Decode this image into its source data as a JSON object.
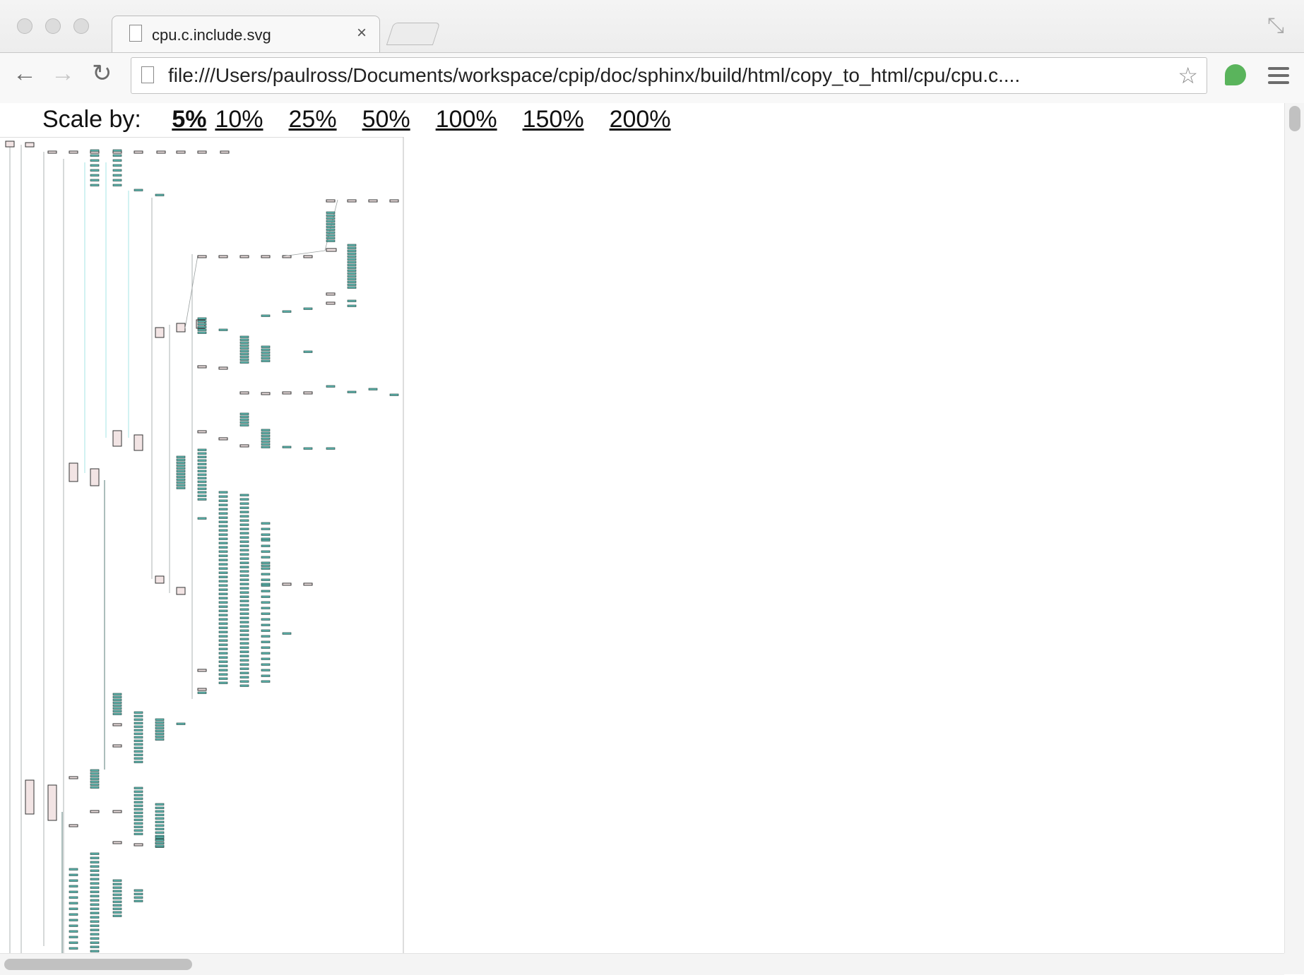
{
  "window": {
    "traffic_lights": [
      "close",
      "minimize",
      "zoom"
    ]
  },
  "tab": {
    "title": "cpu.c.include.svg",
    "close_glyph": "×",
    "doc_icon": "document-icon"
  },
  "toolbar": {
    "back_glyph": "←",
    "forward_glyph": "→",
    "reload_glyph": "↻",
    "url": "file:///Users/paulross/Documents/workspace/cpip/doc/sphinx/build/html/copy_to_html/cpu/cpu.c....",
    "star_glyph": "☆",
    "expand_glyph": "⤡"
  },
  "scale": {
    "label": "Scale by:",
    "options": [
      "5%",
      "10%",
      "25%",
      "50%",
      "100%",
      "150%",
      "200%"
    ],
    "selected": "5%"
  },
  "colors": {
    "node_fill": "#f2e4e4",
    "node_stroke": "#333333",
    "leaf_fill": "#5fb8b0",
    "edge": "#9aa0a0",
    "edge_cyan": "#8fe0e0",
    "edge_dark": "#2d5a55"
  }
}
